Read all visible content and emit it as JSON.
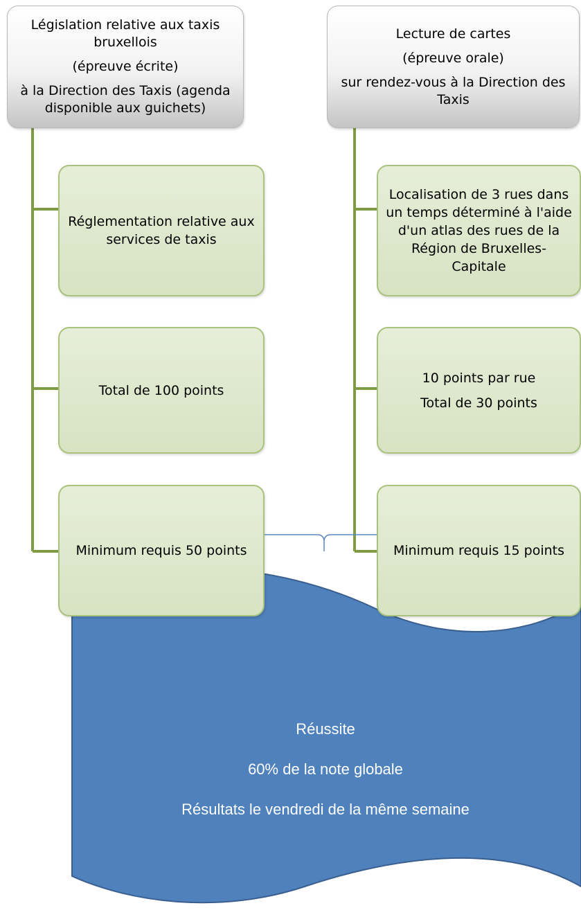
{
  "columns": [
    {
      "header": {
        "lines": [
          "Législation relative aux taxis",
          "bruxellois",
          "(épreuve écrite)",
          "à la Direction des Taxis (agenda",
          "disponible aux guichets)"
        ]
      },
      "children": [
        {
          "lines": [
            "Réglementation relative aux",
            "services de taxis"
          ]
        },
        {
          "lines": [
            "Total de 100 points"
          ]
        },
        {
          "lines": [
            "Minimum requis 50 points"
          ]
        }
      ]
    },
    {
      "header": {
        "lines": [
          "Lecture de cartes",
          "(épreuve orale)",
          "sur rendez-vous à la Direction des",
          "Taxis"
        ]
      },
      "children": [
        {
          "lines": [
            "Localisation de 3 rues dans",
            "un temps déterminé à l'aide",
            "d'un atlas des rues de la",
            "Région de Bruxelles-",
            "Capitale"
          ]
        },
        {
          "lines": [
            "10 points par rue",
            "Total de 30 points"
          ]
        },
        {
          "lines": [
            "Minimum requis 15 points"
          ]
        }
      ]
    }
  ],
  "result": {
    "lines": [
      "Réussite",
      "60% de la note globale",
      "Résultats le vendredi de la même semaine"
    ]
  },
  "colors": {
    "connector": "#7f9c45",
    "child_border": "#a9c27d",
    "brace": "#5b87c5",
    "banner_fill": "#4f81bd",
    "banner_stroke": "#3a5f8f"
  }
}
